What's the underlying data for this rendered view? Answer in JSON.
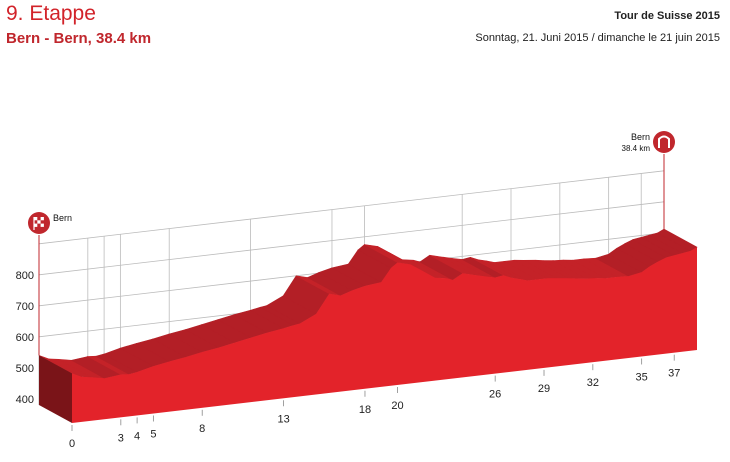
{
  "header": {
    "stage_title": "9. Etappe",
    "route": "Bern - Bern, 38.4 km",
    "race": "Tour de Suisse 2015",
    "date": "Sonntag, 21. Juni 2015 / dimanche le 21 juin 2015"
  },
  "colors": {
    "title": "#d2232a",
    "profile_front": "#e3232a",
    "profile_top": "#b31f26",
    "profile_side": "#7a1418",
    "grid": "#bbbbbb"
  },
  "chart_data": {
    "type": "area",
    "title": "",
    "xlabel": "",
    "ylabel": "",
    "ylim": [
      400,
      800
    ],
    "yticks": [
      400,
      500,
      600,
      700,
      800
    ],
    "xlim": [
      0,
      38.4
    ],
    "xticks": [
      {
        "km": 0,
        "label": "0"
      },
      {
        "km": 3,
        "label": "3"
      },
      {
        "km": 4,
        "label": "4"
      },
      {
        "km": 5,
        "label": "5"
      },
      {
        "km": 8,
        "label": "8"
      },
      {
        "km": 13,
        "label": "13"
      },
      {
        "km": 18,
        "label": "18"
      },
      {
        "km": 20,
        "label": "20"
      },
      {
        "km": 26,
        "label": "26"
      },
      {
        "km": 29,
        "label": "29"
      },
      {
        "km": 32,
        "label": "32"
      },
      {
        "km": 35,
        "label": "35"
      },
      {
        "km": 37,
        "label": "37"
      }
    ],
    "grid": true,
    "series": [
      {
        "points": [
          [
            0,
            540
          ],
          [
            0.6,
            525
          ],
          [
            1.2,
            520
          ],
          [
            2,
            512
          ],
          [
            3,
            518
          ],
          [
            3.5,
            516
          ],
          [
            4,
            520
          ],
          [
            5,
            533
          ],
          [
            6,
            542
          ],
          [
            7,
            550
          ],
          [
            8,
            560
          ],
          [
            9,
            568
          ],
          [
            10,
            578
          ],
          [
            11,
            588
          ],
          [
            12,
            598
          ],
          [
            13,
            606
          ],
          [
            13.6,
            612
          ],
          [
            14,
            615
          ],
          [
            15,
            640
          ],
          [
            15.8,
            700
          ],
          [
            16.5,
            690
          ],
          [
            17.2,
            702
          ],
          [
            18,
            712
          ],
          [
            19,
            718
          ],
          [
            19.6,
            760
          ],
          [
            20,
            775
          ],
          [
            20.8,
            764
          ],
          [
            21.5,
            740
          ],
          [
            22.3,
            712
          ],
          [
            23,
            706
          ],
          [
            23.4,
            698
          ],
          [
            24,
            716
          ],
          [
            24.8,
            705
          ],
          [
            25.4,
            697
          ],
          [
            26,
            690
          ],
          [
            26.5,
            694
          ],
          [
            27,
            683
          ],
          [
            27.5,
            676
          ],
          [
            28,
            668
          ],
          [
            28.6,
            668
          ],
          [
            29.2,
            668
          ],
          [
            29.8,
            664
          ],
          [
            30.5,
            660
          ],
          [
            31,
            656
          ],
          [
            31.6,
            652
          ],
          [
            32.2,
            650
          ],
          [
            32.8,
            646
          ],
          [
            33.5,
            646
          ],
          [
            34.2,
            644
          ],
          [
            35,
            652
          ],
          [
            35.5,
            668
          ],
          [
            36,
            680
          ],
          [
            36.5,
            690
          ],
          [
            37,
            694
          ],
          [
            37.5,
            698
          ],
          [
            38,
            702
          ],
          [
            38.4,
            712
          ]
        ]
      }
    ],
    "markers": [
      {
        "km": 0,
        "name": "Bern",
        "distance": "",
        "icon": "start-flag-icon"
      },
      {
        "km": 38.4,
        "name": "Bern",
        "distance": "38.4 km",
        "icon": "finish-arch-icon"
      }
    ]
  }
}
